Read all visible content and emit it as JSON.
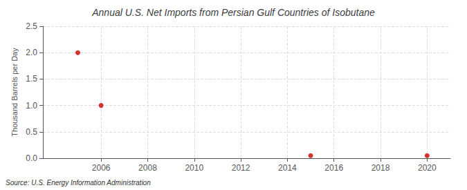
{
  "chart_data": {
    "type": "scatter",
    "title": "Annual U.S. Net Imports from Persian Gulf Countries of Isobutane",
    "ylabel": "Thousand Barrels per Day",
    "source": "Source: U.S. Energy Information Administration",
    "x": [
      2005,
      2006,
      2015,
      2020
    ],
    "values": [
      2.0,
      1.0,
      0.05,
      0.05
    ],
    "color": "#cc0000",
    "marker": "circle",
    "xlim": [
      2003.5,
      2021
    ],
    "xticks": [
      2006,
      2008,
      2010,
      2012,
      2014,
      2016,
      2018,
      2020
    ],
    "ylim": [
      0,
      2.5
    ],
    "yticks": [
      {
        "value": 0.0,
        "label": "0.0"
      },
      0.5,
      {
        "value": 1.0,
        "label": "1.0"
      },
      1.5,
      {
        "value": 2.0,
        "label": "2.0"
      },
      2.5
    ],
    "grid": true
  }
}
